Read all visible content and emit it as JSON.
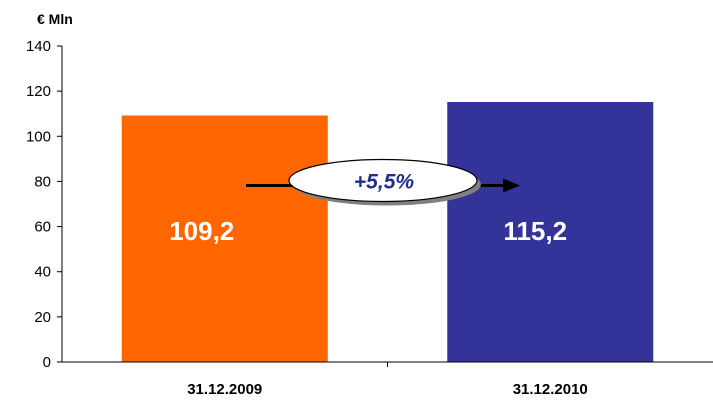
{
  "chart_data": {
    "type": "bar",
    "ylabel": "€ Mln",
    "categories": [
      "31.12.2009",
      "31.12.2010"
    ],
    "values": [
      109.2,
      115.2
    ],
    "value_labels": [
      "109,2",
      "115,2"
    ],
    "colors": [
      "#ff6600",
      "#333399"
    ],
    "ylim": [
      0,
      140
    ],
    "yticks": [
      0,
      20,
      40,
      60,
      80,
      100,
      120,
      140
    ],
    "grid": false,
    "annotation": {
      "text": "+5,5%",
      "text_color": "#1f2f8f",
      "arrow_color": "#000000"
    }
  }
}
